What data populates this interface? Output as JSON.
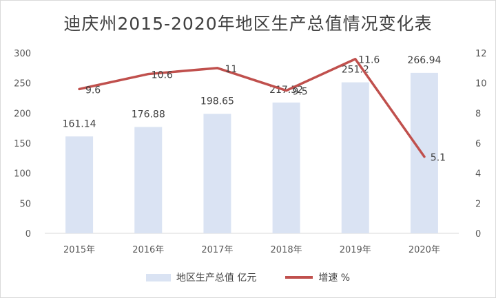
{
  "chart_data": {
    "type": "bar+line",
    "title": "迪庆州2015-2020年地区生产总值情况变化表",
    "categories": [
      "2015年",
      "2016年",
      "2017年",
      "2018年",
      "2019年",
      "2020年"
    ],
    "series": [
      {
        "name": "地区生产总值 亿元",
        "type": "bar",
        "axis": "left",
        "values": [
          161.14,
          176.88,
          198.65,
          217.52,
          251.2,
          266.94
        ],
        "labels": [
          "161.14",
          "176.88",
          "198.65",
          "217.52",
          "251.2",
          "266.94"
        ],
        "color": "#dae3f3"
      },
      {
        "name": "增速 %",
        "type": "line",
        "axis": "right",
        "values": [
          9.6,
          10.6,
          11,
          9.5,
          11.6,
          5.1
        ],
        "labels": [
          "9.6",
          "10.6",
          "11",
          "9.5",
          "11.6",
          "5.1"
        ],
        "color": "#c0504d"
      }
    ],
    "ylim_left": [
      0,
      300
    ],
    "ylim_right": [
      0,
      12
    ],
    "yticks_left": [
      "0",
      "50",
      "100",
      "150",
      "200",
      "250",
      "300"
    ],
    "yticks_right": [
      "0",
      "2",
      "4",
      "6",
      "8",
      "10",
      "12"
    ],
    "grid": false,
    "legend": "bottom"
  }
}
